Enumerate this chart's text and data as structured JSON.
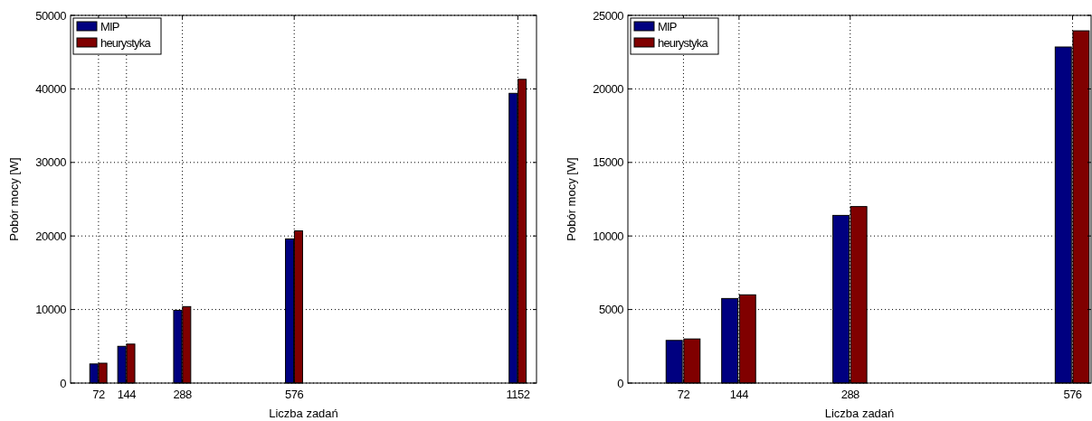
{
  "chart_data": [
    {
      "type": "bar",
      "xlabel": "Liczba zadań",
      "ylabel": "Pobór mocy [W]",
      "x": [
        72,
        144,
        288,
        576,
        1152
      ],
      "xlim": [
        0,
        1200
      ],
      "xticks": [
        72,
        144,
        288,
        576,
        1152
      ],
      "ylim": [
        0,
        50000
      ],
      "yticks": [
        0,
        10000,
        20000,
        30000,
        40000,
        50000
      ],
      "grid": true,
      "legend": "top left",
      "series": [
        {
          "name": "MIP",
          "color": "#000080",
          "values": [
            2600,
            5000,
            9900,
            19600,
            39400
          ]
        },
        {
          "name": "heurystyka",
          "color": "#800000",
          "values": [
            2700,
            5300,
            10400,
            20700,
            41300
          ]
        }
      ]
    },
    {
      "type": "bar",
      "xlabel": "Liczba zadań",
      "ylabel": "Pobór mocy [W]",
      "x": [
        72,
        144,
        288,
        576
      ],
      "xlim": [
        0,
        600
      ],
      "xticks": [
        72,
        144,
        288,
        576
      ],
      "ylim": [
        0,
        25000
      ],
      "yticks": [
        0,
        5000,
        10000,
        15000,
        20000,
        25000
      ],
      "grid": true,
      "legend": "top left",
      "series": [
        {
          "name": "MIP",
          "color": "#000080",
          "values": [
            2900,
            5750,
            11400,
            22850
          ]
        },
        {
          "name": "heurystyka",
          "color": "#800000",
          "values": [
            3000,
            6000,
            12000,
            23950
          ]
        }
      ]
    }
  ]
}
